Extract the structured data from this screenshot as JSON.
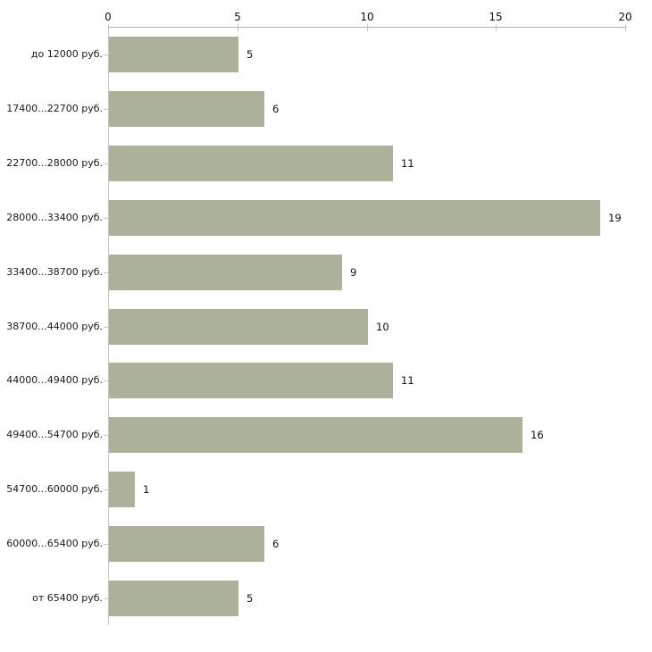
{
  "chart_data": {
    "type": "bar",
    "orientation": "horizontal",
    "title": "",
    "xlabel": "",
    "ylabel": "",
    "categories": [
      "до 12000 руб.",
      "17400...22700 руб.",
      "22700...28000 руб.",
      "28000...33400 руб.",
      "33400...38700 руб.",
      "38700...44000 руб.",
      "44000...49400 руб.",
      "49400...54700 руб.",
      "54700...60000 руб.",
      "60000...65400 руб.",
      "от 65400 руб."
    ],
    "values": [
      5,
      6,
      11,
      19,
      9,
      10,
      11,
      16,
      1,
      6,
      5
    ],
    "value_labels": [
      "5",
      "6",
      "11",
      "19",
      "9",
      "10",
      "11",
      "16",
      "1",
      "6",
      "5"
    ],
    "xlim": [
      0,
      20
    ],
    "xticks": [
      "0",
      "5",
      "10",
      "15",
      "20"
    ],
    "grid": false,
    "legend": false,
    "colors": {
      "bar": "#acb299",
      "axis_line": "#b3b3b3",
      "y_axis_line": "#c6c6c6",
      "tick_mark": "#c9cab2",
      "text": "#111111",
      "background": "#ffffff"
    }
  }
}
